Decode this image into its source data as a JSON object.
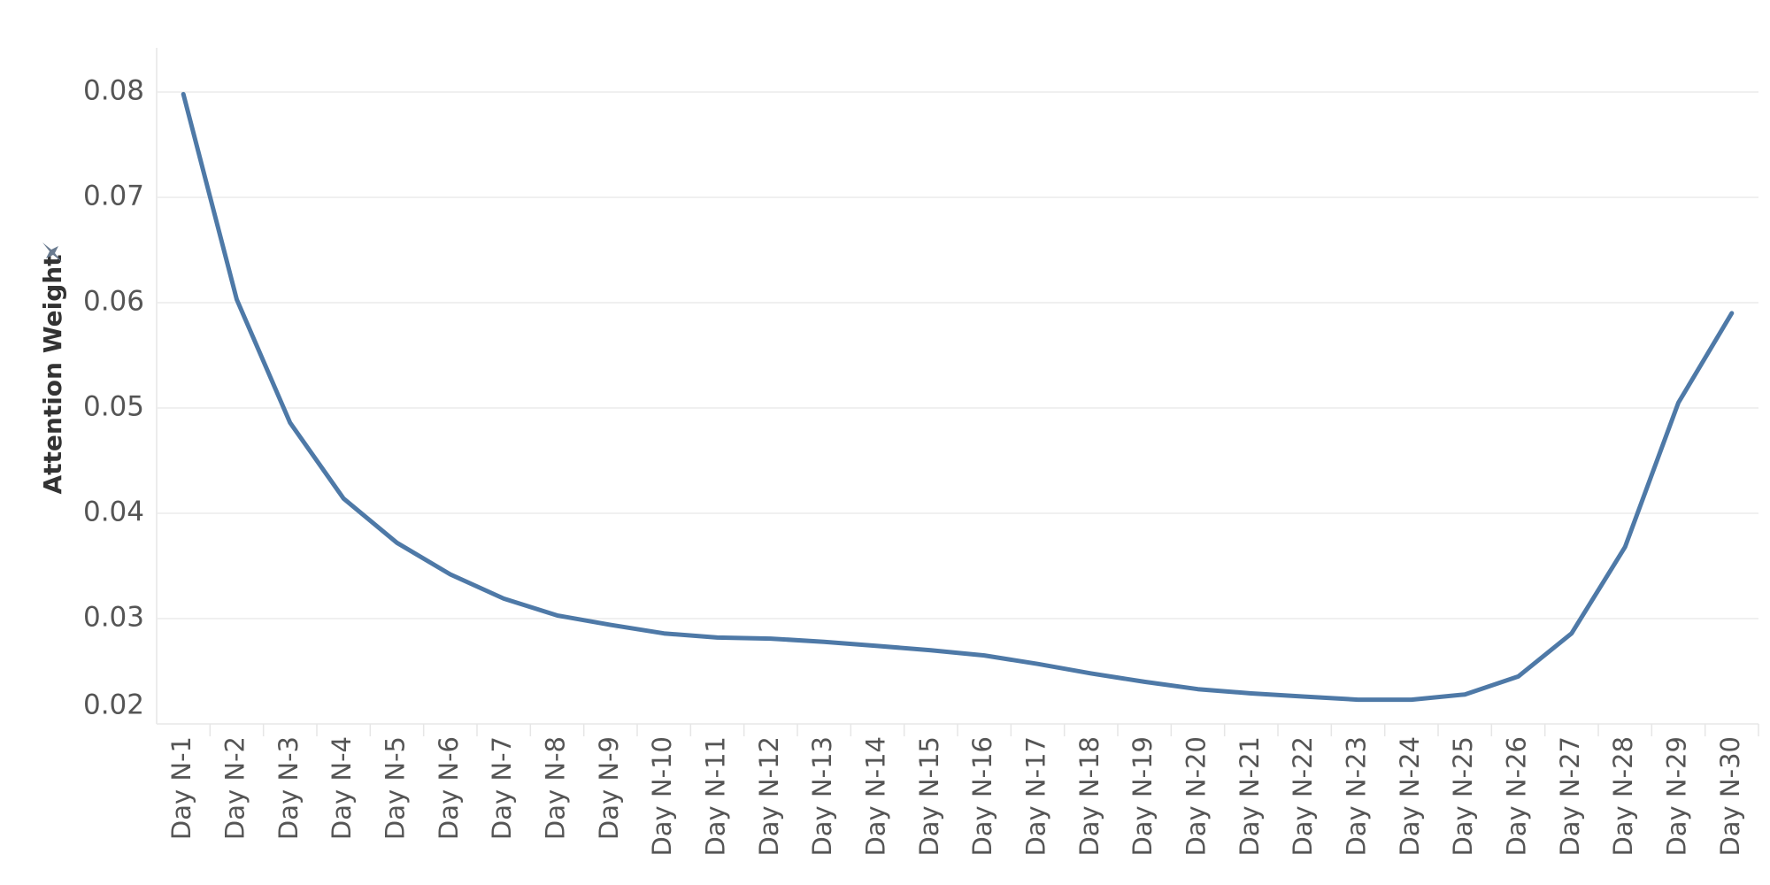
{
  "chart_data": {
    "type": "line",
    "y_label": "Attention Weight",
    "categories": [
      "Day N-1",
      "Day N-2",
      "Day N-3",
      "Day N-4",
      "Day N-5",
      "Day N-6",
      "Day N-7",
      "Day N-8",
      "Day N-9",
      "Day N-10",
      "Day N-11",
      "Day N-12",
      "Day N-13",
      "Day N-14",
      "Day N-15",
      "Day N-16",
      "Day N-17",
      "Day N-18",
      "Day N-19",
      "Day N-20",
      "Day N-21",
      "Day N-22",
      "Day N-23",
      "Day N-24",
      "Day N-25",
      "Day N-26",
      "Day N-27",
      "Day N-28",
      "Day N-29",
      "Day N-30"
    ],
    "values": [
      0.0798,
      0.0603,
      0.0486,
      0.0414,
      0.0372,
      0.0342,
      0.0319,
      0.0303,
      0.0294,
      0.0286,
      0.0282,
      0.0281,
      0.0278,
      0.0274,
      0.027,
      0.0265,
      0.0257,
      0.0248,
      0.024,
      0.0233,
      0.0229,
      0.0226,
      0.0223,
      0.0223,
      0.0228,
      0.0245,
      0.0286,
      0.0368,
      0.0505,
      0.059
    ],
    "color": "#4e79a7",
    "ylim": [
      0.02,
      0.0842
    ],
    "yticks": [
      0.02,
      0.03,
      0.04,
      0.05,
      0.06,
      0.07,
      0.08
    ],
    "grid": true
  }
}
